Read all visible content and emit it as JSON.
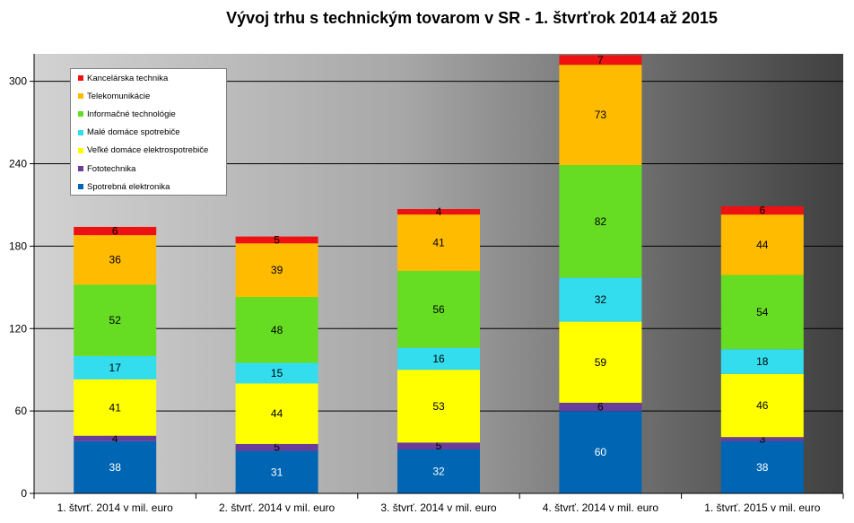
{
  "chart_data": {
    "type": "bar",
    "stacked": true,
    "title": "Vývoj trhu s technickým tovarom v SR - 1. štvrťrok 2014 až 2015",
    "xlabel": "",
    "ylabel": "",
    "ylim": [
      0,
      320
    ],
    "yticks": [
      "0",
      "60",
      "120",
      "180",
      "240",
      "300"
    ],
    "ytick_values": [
      0,
      60,
      120,
      180,
      240,
      300
    ],
    "grid": true,
    "legend_position": "top-left",
    "categories": [
      "1. štvrť. 2014 v mil. euro",
      "2. štvrť. 2014 v mil. euro",
      "3. štvrť. 2014 v mil. euro",
      "4. štvrť. 2014 v mil. euro",
      "1. štvrť. 2015 v mil. euro"
    ],
    "series": [
      {
        "name": "Spotrebná elektronika",
        "color": "#0066b3",
        "label_color": "#ffffff",
        "values": [
          38,
          31,
          32,
          60,
          38
        ]
      },
      {
        "name": "Fototechnika",
        "color": "#6a3d9a",
        "label_color": "#000000",
        "values": [
          4,
          5,
          5,
          6,
          3
        ]
      },
      {
        "name": "Veľké domáce elektrospotrebiče",
        "color": "#ffff00",
        "label_color": "#000000",
        "values": [
          41,
          44,
          53,
          59,
          46
        ]
      },
      {
        "name": "Malé domáce spotrebiče",
        "color": "#33ddee",
        "label_color": "#000000",
        "values": [
          17,
          15,
          16,
          32,
          18
        ]
      },
      {
        "name": "Informačné technológie",
        "color": "#66dd22",
        "label_color": "#000000",
        "values": [
          52,
          48,
          56,
          82,
          54
        ]
      },
      {
        "name": "Telekomunikácie",
        "color": "#ffbb00",
        "label_color": "#000000",
        "values": [
          36,
          39,
          41,
          73,
          44
        ]
      },
      {
        "name": "Kancelárska technika",
        "color": "#ee1111",
        "label_color": "#000000",
        "values": [
          6,
          5,
          4,
          7,
          6
        ]
      }
    ],
    "legend_order": [
      6,
      5,
      4,
      3,
      2,
      1,
      0
    ]
  }
}
